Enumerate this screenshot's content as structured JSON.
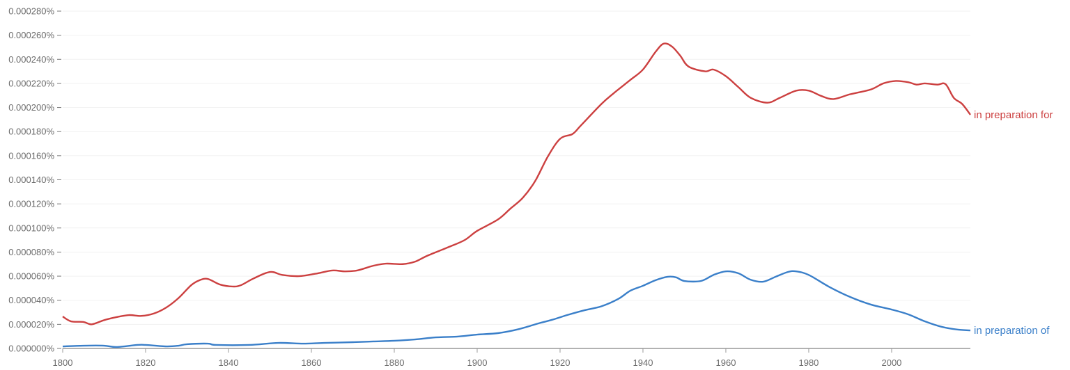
{
  "chart_data": {
    "type": "line",
    "title": "",
    "xlabel": "",
    "ylabel": "",
    "xlim": [
      1800,
      2019
    ],
    "ylim": [
      0,
      0.00028
    ],
    "grid": true,
    "legend": "inline-right-end",
    "x_ticks": [
      "1800",
      "1820",
      "1840",
      "1860",
      "1880",
      "1900",
      "1920",
      "1940",
      "1960",
      "1980",
      "2000"
    ],
    "y_ticks": [
      "0.000000%",
      "0.000020%",
      "0.000040%",
      "0.000060%",
      "0.000080%",
      "0.000100%",
      "0.000120%",
      "0.000140%",
      "0.000160%",
      "0.000180%",
      "0.000200%",
      "0.000220%",
      "0.000240%",
      "0.000260%",
      "0.000280%"
    ],
    "y_unit": "percent",
    "series": [
      {
        "name": "in preparation for",
        "color": "#cc4040",
        "x": [
          1800,
          1802,
          1805,
          1807,
          1810,
          1813,
          1816,
          1819,
          1822,
          1825,
          1828,
          1831,
          1833,
          1835,
          1838,
          1841,
          1843,
          1846,
          1850,
          1853,
          1857,
          1861,
          1865,
          1868,
          1871,
          1875,
          1878,
          1882,
          1885,
          1888,
          1893,
          1897,
          1900,
          1905,
          1908,
          1911,
          1914,
          1917,
          1920,
          1923,
          1925,
          1930,
          1933,
          1937,
          1940,
          1943,
          1945,
          1947,
          1949,
          1951,
          1955,
          1957,
          1960,
          1963,
          1966,
          1970,
          1973,
          1977,
          1980,
          1983,
          1986,
          1990,
          1995,
          1998,
          2001,
          2004,
          2006,
          2008,
          2011,
          2013,
          2015,
          2017,
          2019
        ],
        "values": [
          2.65e-05,
          2.25e-05,
          2.2e-05,
          2e-05,
          2.35e-05,
          2.6e-05,
          2.77e-05,
          2.7e-05,
          2.9e-05,
          3.4e-05,
          4.2e-05,
          5.25e-05,
          5.66e-05,
          5.77e-05,
          5.3e-05,
          5.14e-05,
          5.25e-05,
          5.8e-05,
          6.35e-05,
          6.1e-05,
          6e-05,
          6.2e-05,
          6.47e-05,
          6.4e-05,
          6.47e-05,
          6.87e-05,
          7.04e-05,
          7e-05,
          7.2e-05,
          7.7e-05,
          8.4e-05,
          9e-05,
          9.76e-05,
          0.000107,
          0.000116,
          0.000125,
          0.000139,
          0.000159,
          0.000174,
          0.000178,
          0.000185,
          0.000203,
          0.000212,
          0.000223,
          0.0002315,
          0.000246,
          0.000253,
          0.0002506,
          0.000243,
          0.000234,
          0.00023,
          0.0002315,
          0.000226,
          0.000217,
          0.000208,
          0.000204,
          0.000208,
          0.000214,
          0.000214,
          0.0002096,
          0.000207,
          0.000211,
          0.000215,
          0.00022,
          0.000222,
          0.000221,
          0.000219,
          0.00022,
          0.000219,
          0.0002194,
          0.000208,
          0.000203,
          0.000194
        ]
      },
      {
        "name": "in preparation of",
        "color": "#3a7fc9",
        "x": [
          1800,
          1805,
          1810,
          1813,
          1818,
          1820,
          1825,
          1828,
          1830,
          1835,
          1837,
          1845,
          1852,
          1858,
          1863,
          1870,
          1875,
          1880,
          1885,
          1890,
          1895,
          1900,
          1905,
          1910,
          1915,
          1918,
          1922,
          1926,
          1930,
          1934,
          1937,
          1940,
          1943,
          1946,
          1948,
          1950,
          1954,
          1957,
          1960,
          1963,
          1966,
          1969,
          1972,
          1975,
          1977,
          1980,
          1985,
          1990,
          1995,
          2000,
          2004,
          2008,
          2012,
          2016,
          2019
        ],
        "values": [
          1.7e-06,
          2.3e-06,
          2.3e-06,
          1.2e-06,
          2.9e-06,
          2.9e-06,
          1.7e-06,
          2.3e-06,
          3.5e-06,
          4e-06,
          2.9e-06,
          2.9e-06,
          4.6e-06,
          4e-06,
          4.6e-06,
          5.2e-06,
          5.8e-06,
          6.4e-06,
          7.5e-06,
          9.2e-06,
          9.8e-06,
          1.15e-05,
          1.27e-05,
          1.6e-05,
          2.1e-05,
          2.37e-05,
          2.8e-05,
          3.18e-05,
          3.5e-05,
          4.1e-05,
          4.8e-05,
          5.2e-05,
          5.66e-05,
          5.95e-05,
          5.9e-05,
          5.6e-05,
          5.6e-05,
          6.1e-05,
          6.4e-05,
          6.24e-05,
          5.7e-05,
          5.54e-05,
          5.95e-05,
          6.35e-05,
          6.4e-05,
          6.1e-05,
          5.1e-05,
          4.27e-05,
          3.64e-05,
          3.23e-05,
          2.83e-05,
          2.25e-05,
          1.8e-05,
          1.56e-05,
          1.5e-05
        ]
      }
    ]
  }
}
